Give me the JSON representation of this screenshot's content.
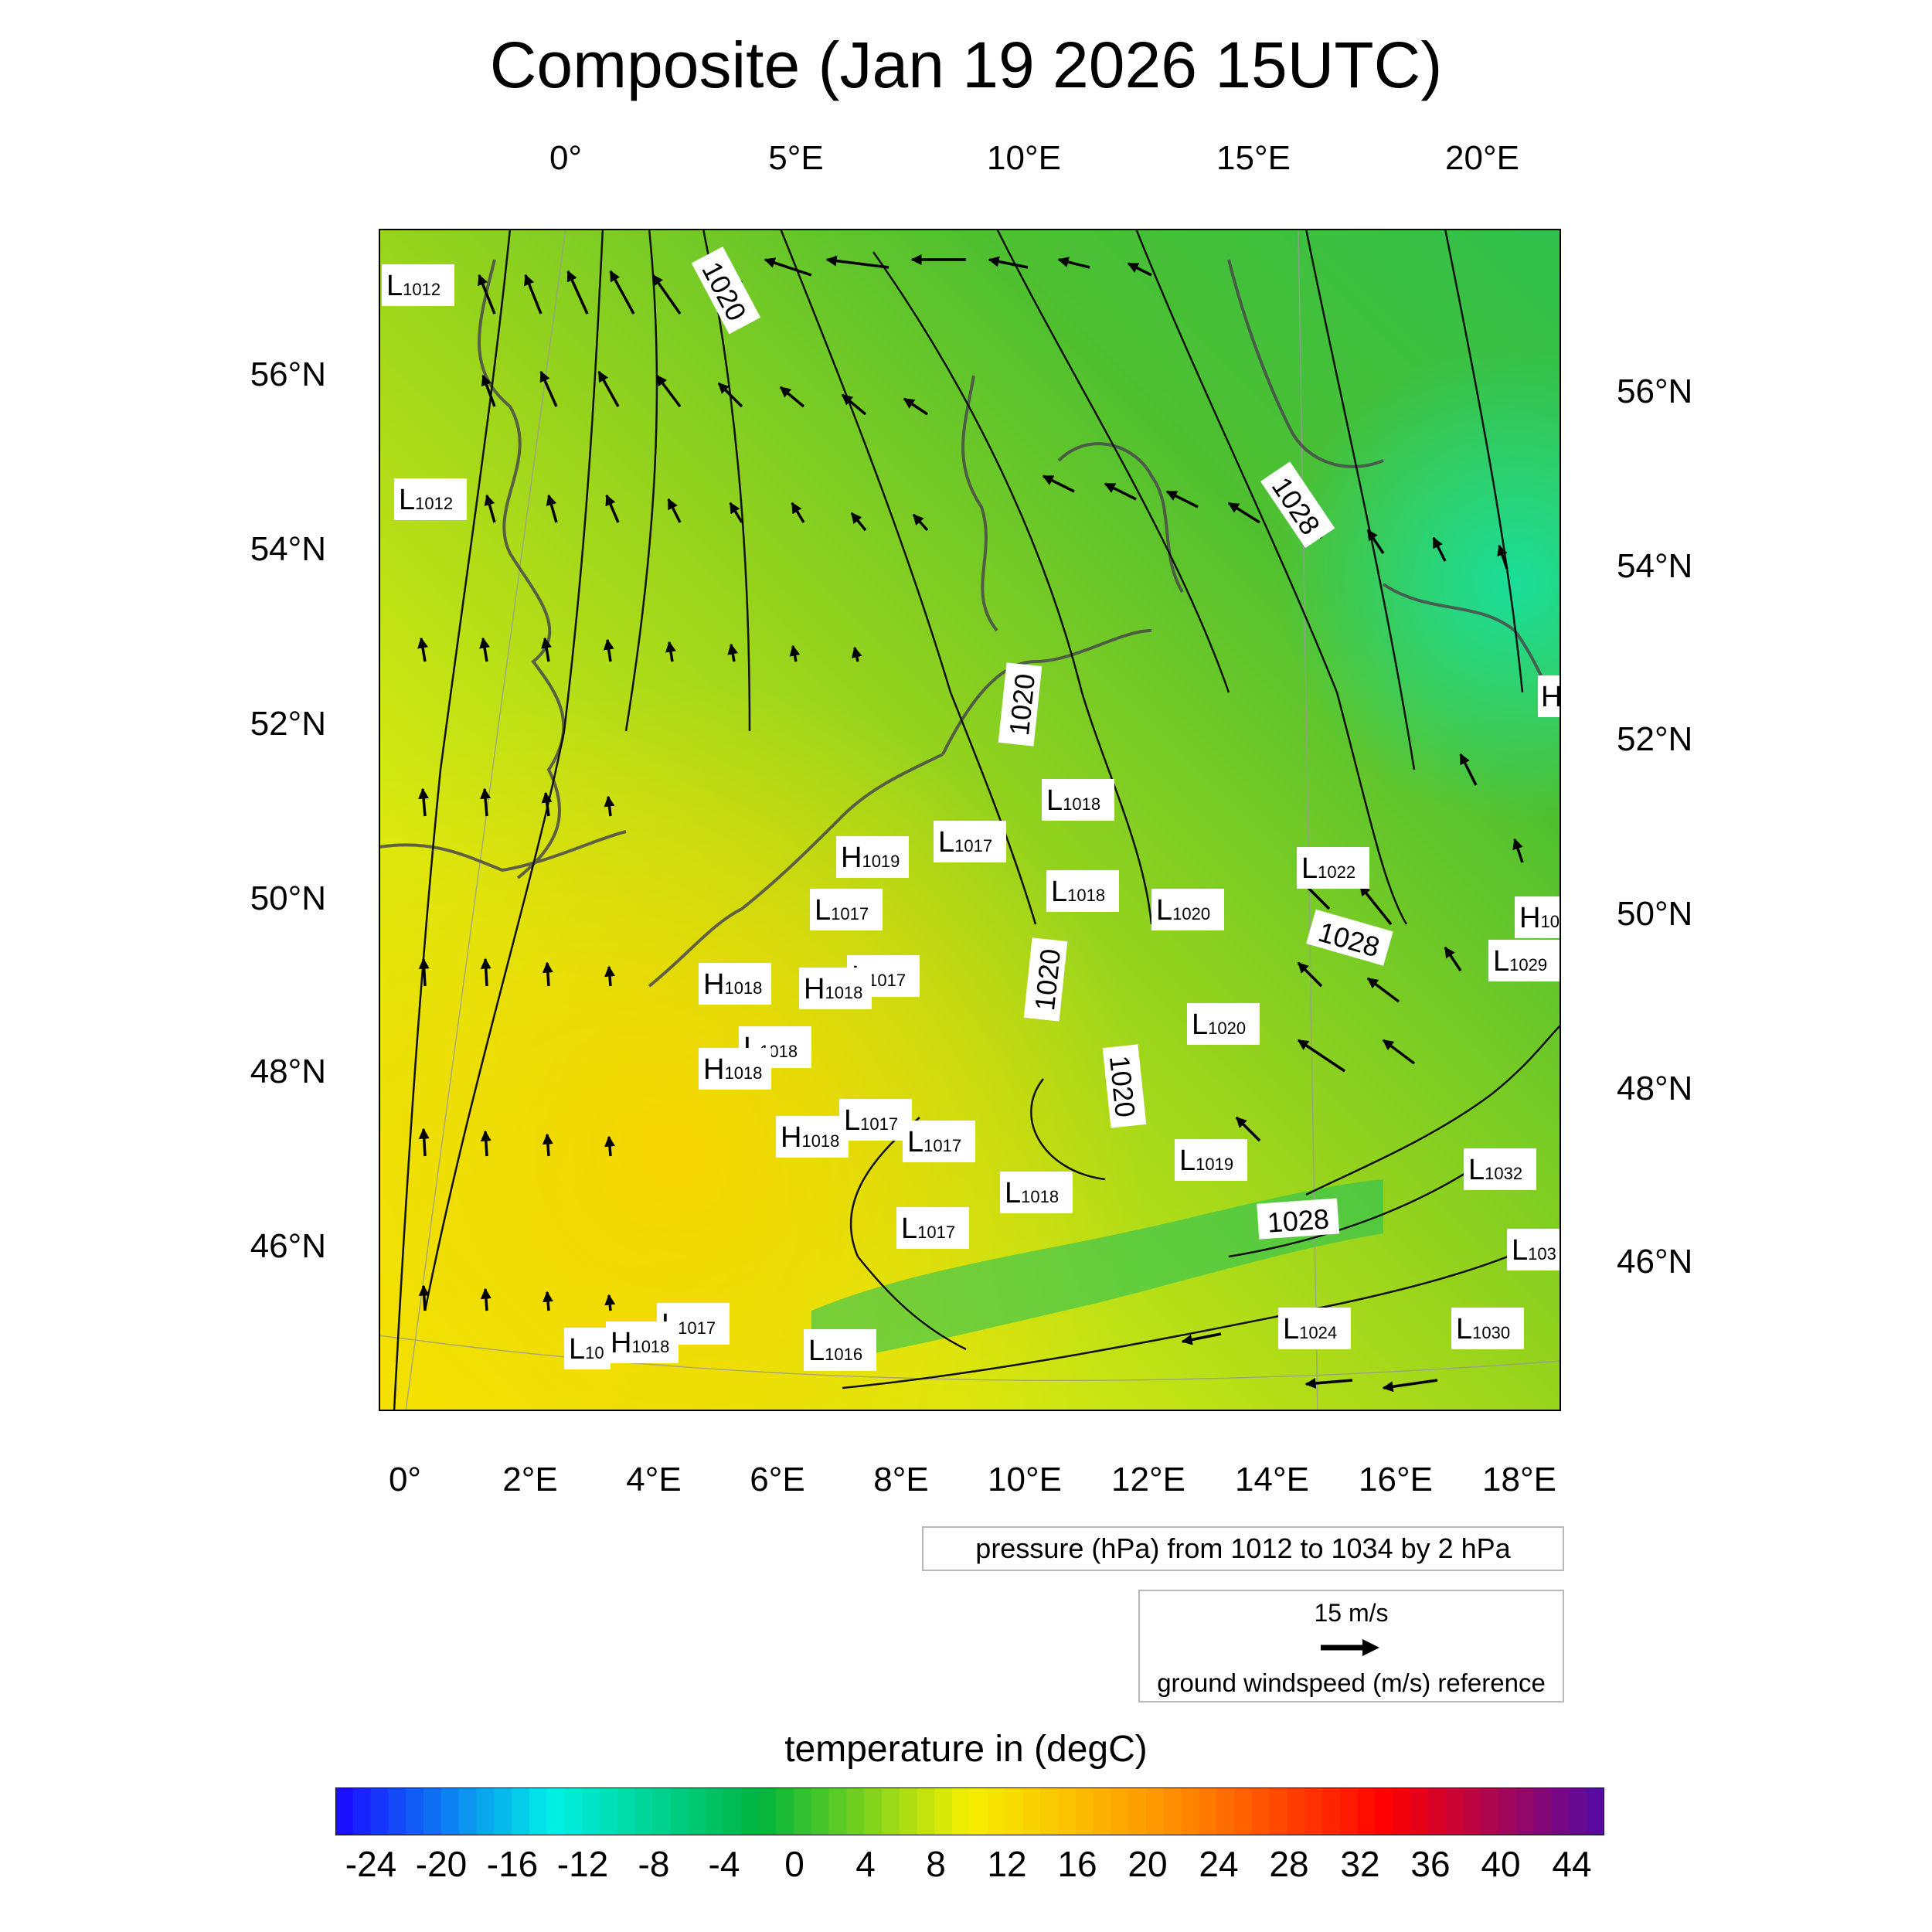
{
  "title": "Composite (Jan 19 2026 15UTC)",
  "axes": {
    "top_lon_labels": [
      "0°",
      "5°E",
      "10°E",
      "15°E",
      "20°E"
    ],
    "bottom_lon_labels": [
      "0°",
      "2°E",
      "4°E",
      "6°E",
      "8°E",
      "10°E",
      "12°E",
      "14°E",
      "16°E",
      "18°E"
    ],
    "left_lat_labels": [
      "56°N",
      "54°N",
      "52°N",
      "50°N",
      "48°N",
      "46°N"
    ],
    "right_lat_labels": [
      "56°N",
      "54°N",
      "52°N",
      "50°N",
      "48°N",
      "46°N"
    ]
  },
  "contour_labels": [
    "1020",
    "1028",
    "1020",
    "1028",
    "1020",
    "1020",
    "1028"
  ],
  "pressure_centers": [
    {
      "type": "L",
      "value": "1012"
    },
    {
      "type": "L",
      "value": "1012"
    },
    {
      "type": "L",
      "value": "1018"
    },
    {
      "type": "H",
      "value": "1019"
    },
    {
      "type": "L",
      "value": "1017"
    },
    {
      "type": "L",
      "value": "1018"
    },
    {
      "type": "L",
      "value": "1022"
    },
    {
      "type": "L",
      "value": "1017"
    },
    {
      "type": "L",
      "value": "1020"
    },
    {
      "type": "H",
      "value": "10"
    },
    {
      "type": "L",
      "value": "1017"
    },
    {
      "type": "H",
      "value": "1018"
    },
    {
      "type": "H",
      "value": "1018"
    },
    {
      "type": "L",
      "value": "1029"
    },
    {
      "type": "L",
      "value": "1020"
    },
    {
      "type": "L",
      "value": "1018"
    },
    {
      "type": "H",
      "value": "1018"
    },
    {
      "type": "H",
      "value": "1018"
    },
    {
      "type": "L",
      "value": "1017"
    },
    {
      "type": "L",
      "value": "1017"
    },
    {
      "type": "L",
      "value": "1019"
    },
    {
      "type": "L",
      "value": "1032"
    },
    {
      "type": "L",
      "value": "1018"
    },
    {
      "type": "L",
      "value": "1017"
    },
    {
      "type": "L",
      "value": "103"
    },
    {
      "type": "L",
      "value": "1017"
    },
    {
      "type": "H",
      "value": "1018"
    },
    {
      "type": "L",
      "value": "10"
    },
    {
      "type": "L",
      "value": "1016"
    },
    {
      "type": "L",
      "value": "1024"
    },
    {
      "type": "L",
      "value": "1030"
    },
    {
      "type": "H",
      "value": ""
    }
  ],
  "pressure_legend": "pressure (hPa) from 1012 to 1034 by 2 hPa",
  "wind_legend": {
    "reference": "15 m/s",
    "label": "ground windspeed (m/s) reference"
  },
  "colorbar": {
    "title": "temperature in (degC)",
    "labels": [
      "-24",
      "-20",
      "-16",
      "-12",
      "-8",
      "-4",
      "0",
      "4",
      "8",
      "12",
      "16",
      "20",
      "24",
      "28",
      "32",
      "36",
      "40",
      "44"
    ],
    "colors": {
      "cold": "#1a10ff",
      "cyan": "#00f0e6",
      "green": "#00b43c",
      "yellow": "#f7f000",
      "orange": "#ff8c00",
      "red": "#ff0000",
      "purple": "#5a0aa0"
    }
  }
}
